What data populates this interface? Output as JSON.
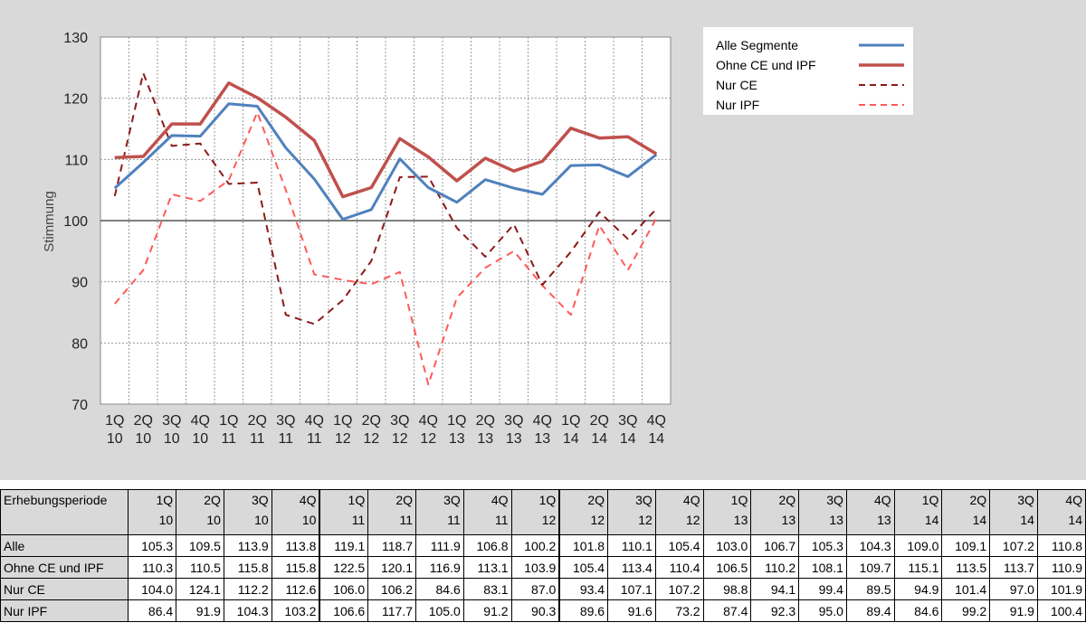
{
  "chart_data": {
    "type": "line",
    "ylabel": "Stimmung",
    "ylim": [
      70,
      130
    ],
    "yticks": [
      70,
      80,
      90,
      100,
      110,
      120,
      130
    ],
    "reference_line": 100,
    "grid": true,
    "legend_position": "right",
    "categories": [
      {
        "q": "1Q",
        "y": "10"
      },
      {
        "q": "2Q",
        "y": "10"
      },
      {
        "q": "3Q",
        "y": "10"
      },
      {
        "q": "4Q",
        "y": "10"
      },
      {
        "q": "1Q",
        "y": "11"
      },
      {
        "q": "2Q",
        "y": "11"
      },
      {
        "q": "3Q",
        "y": "11"
      },
      {
        "q": "4Q",
        "y": "11"
      },
      {
        "q": "1Q",
        "y": "12"
      },
      {
        "q": "2Q",
        "y": "12"
      },
      {
        "q": "3Q",
        "y": "12"
      },
      {
        "q": "4Q",
        "y": "12"
      },
      {
        "q": "1Q",
        "y": "13"
      },
      {
        "q": "2Q",
        "y": "13"
      },
      {
        "q": "3Q",
        "y": "13"
      },
      {
        "q": "4Q",
        "y": "13"
      },
      {
        "q": "1Q",
        "y": "14"
      },
      {
        "q": "2Q",
        "y": "14"
      },
      {
        "q": "3Q",
        "y": "14"
      },
      {
        "q": "4Q",
        "y": "14"
      }
    ],
    "series": [
      {
        "name": "Alle Segmente",
        "color": "#4f81bd",
        "style": "solid",
        "values": [
          105.3,
          109.5,
          113.9,
          113.8,
          119.1,
          118.7,
          111.9,
          106.8,
          100.2,
          101.8,
          110.1,
          105.4,
          103.0,
          106.7,
          105.3,
          104.3,
          109.0,
          109.1,
          107.2,
          110.8
        ]
      },
      {
        "name": "Ohne CE und IPF",
        "color": "#c0504d",
        "style": "solid",
        "values": [
          110.3,
          110.5,
          115.8,
          115.8,
          122.5,
          120.1,
          116.9,
          113.1,
          103.9,
          105.4,
          113.4,
          110.4,
          106.5,
          110.2,
          108.1,
          109.7,
          115.1,
          113.5,
          113.7,
          110.9
        ]
      },
      {
        "name": "Nur CE",
        "color": "#8b1a1a",
        "style": "dashed",
        "values": [
          104.0,
          124.1,
          112.2,
          112.6,
          106.0,
          106.2,
          84.6,
          83.1,
          87.0,
          93.4,
          107.1,
          107.2,
          98.8,
          94.1,
          99.4,
          89.5,
          94.9,
          101.4,
          97.0,
          101.9
        ]
      },
      {
        "name": "Nur IPF",
        "color": "#ff5a5a",
        "style": "dashed",
        "values": [
          86.4,
          91.9,
          104.3,
          103.2,
          106.6,
          117.7,
          105.0,
          91.2,
          90.3,
          89.6,
          91.6,
          73.2,
          87.4,
          92.3,
          95.0,
          89.4,
          84.6,
          99.2,
          91.9,
          100.4
        ]
      }
    ]
  },
  "table": {
    "header_label": "Erhebungsperiode",
    "rows": [
      {
        "label": "Alle",
        "values": [
          "105.3",
          "109.5",
          "113.9",
          "113.8",
          "119.1",
          "118.7",
          "111.9",
          "106.8",
          "100.2",
          "101.8",
          "110.1",
          "105.4",
          "103.0",
          "106.7",
          "105.3",
          "104.3",
          "109.0",
          "109.1",
          "107.2",
          "110.8"
        ]
      },
      {
        "label": "Ohne CE und IPF",
        "values": [
          "110.3",
          "110.5",
          "115.8",
          "115.8",
          "122.5",
          "120.1",
          "116.9",
          "113.1",
          "103.9",
          "105.4",
          "113.4",
          "110.4",
          "106.5",
          "110.2",
          "108.1",
          "109.7",
          "115.1",
          "113.5",
          "113.7",
          "110.9"
        ]
      },
      {
        "label": "Nur CE",
        "values": [
          "104.0",
          "124.1",
          "112.2",
          "112.6",
          "106.0",
          "106.2",
          "84.6",
          "83.1",
          "87.0",
          "93.4",
          "107.1",
          "107.2",
          "98.8",
          "94.1",
          "99.4",
          "89.5",
          "94.9",
          "101.4",
          "97.0",
          "101.9"
        ]
      },
      {
        "label": "Nur IPF",
        "values": [
          "86.4",
          "91.9",
          "104.3",
          "103.2",
          "106.6",
          "117.7",
          "105.0",
          "91.2",
          "90.3",
          "89.6",
          "91.6",
          "73.2",
          "87.4",
          "92.3",
          "95.0",
          "89.4",
          "84.6",
          "99.2",
          "91.9",
          "100.4"
        ]
      }
    ]
  }
}
